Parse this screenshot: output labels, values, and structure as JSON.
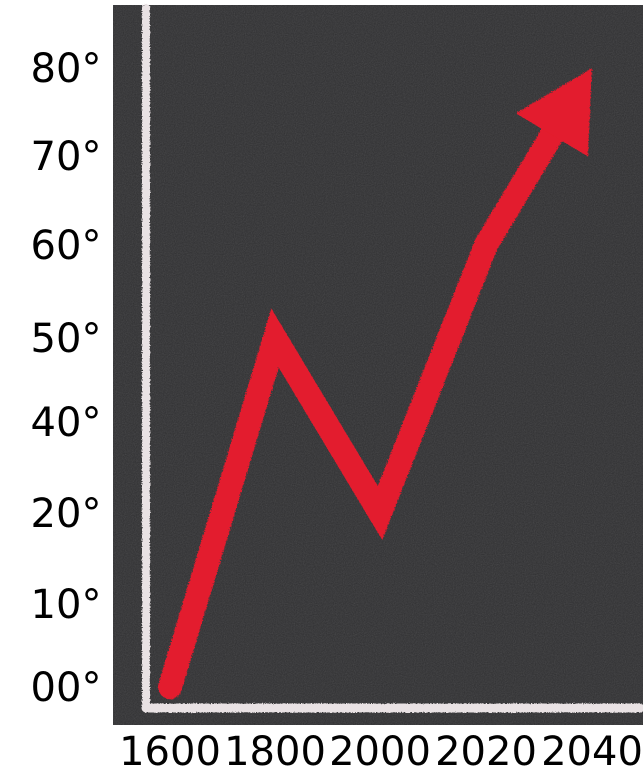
{
  "chart_data": {
    "type": "line",
    "title": "",
    "xlabel": "",
    "ylabel": "",
    "x_ticks": [
      "1600",
      "1800",
      "2000",
      "2020",
      "2040"
    ],
    "y_ticks": [
      "00°",
      "10°",
      "20°",
      "40°",
      "50°",
      "60°",
      "70°",
      "80°"
    ],
    "series": [
      {
        "x": [
          "1600",
          "1800",
          "2000",
          "2020",
          "2040"
        ],
        "y": [
          "00°",
          "50°",
          "20°",
          "60°",
          "80°"
        ],
        "color": "#e31b2d"
      }
    ],
    "grid": false,
    "legend": "none",
    "axis_color": "#e9e2e4",
    "background": "#2f2f31"
  }
}
